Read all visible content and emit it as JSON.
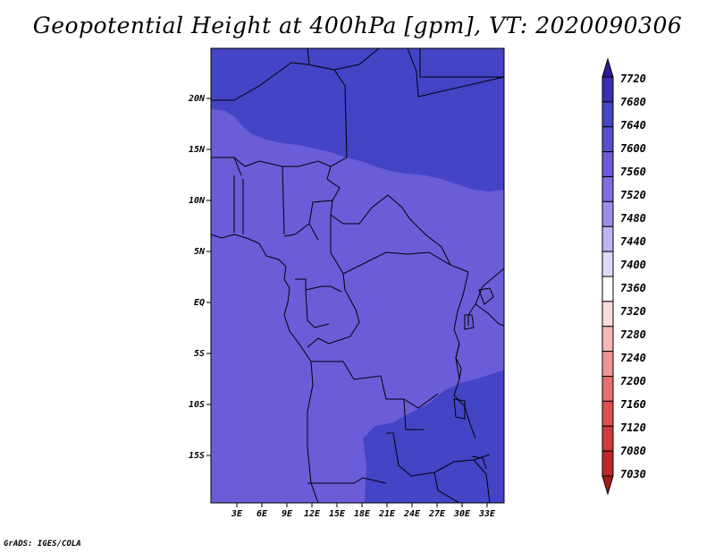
{
  "title": "Geopotential Height at 400hPa [gpm], VT: 2020090306",
  "footer": "GrADS: IGES/COLA",
  "map": {
    "lon_range": [
      0,
      35
    ],
    "lat_range": [
      -20,
      24
    ],
    "lat_ticks": [
      {
        "label": "20N",
        "value": 20
      },
      {
        "label": "15N",
        "value": 15
      },
      {
        "label": "10N",
        "value": 10
      },
      {
        "label": "5N",
        "value": 5
      },
      {
        "label": "EQ",
        "value": 0
      },
      {
        "label": "5S",
        "value": -5
      },
      {
        "label": "10S",
        "value": -10
      },
      {
        "label": "15S",
        "value": -15
      }
    ],
    "lon_ticks": [
      {
        "label": "3E",
        "value": 3
      },
      {
        "label": "6E",
        "value": 6
      },
      {
        "label": "9E",
        "value": 9
      },
      {
        "label": "12E",
        "value": 12
      },
      {
        "label": "15E",
        "value": 15
      },
      {
        "label": "18E",
        "value": 18
      },
      {
        "label": "21E",
        "value": 21
      },
      {
        "label": "24E",
        "value": 24
      },
      {
        "label": "27E",
        "value": 27
      },
      {
        "label": "30E",
        "value": 30
      },
      {
        "label": "33E",
        "value": 33
      }
    ],
    "field_colors": {
      "band_7640_7680": "#4444c6",
      "band_7600_7640": "#6b5cd8"
    }
  },
  "colorbar": {
    "labels": [
      "7720",
      "7680",
      "7640",
      "7600",
      "7560",
      "7520",
      "7480",
      "7440",
      "7400",
      "7360",
      "7320",
      "7280",
      "7240",
      "7200",
      "7160",
      "7120",
      "7080",
      "7030"
    ],
    "colors": [
      "#2a1a9c",
      "#3a2fb4",
      "#4444c6",
      "#5a4ed2",
      "#6b5cd8",
      "#7c70e0",
      "#9a90ea",
      "#bcb6f2",
      "#dcdaf8",
      "#ffffff",
      "#fddcdc",
      "#f8b8b8",
      "#f09494",
      "#e67070",
      "#dc5050",
      "#d03a3a",
      "#c02828",
      "#a81a1a"
    ]
  }
}
